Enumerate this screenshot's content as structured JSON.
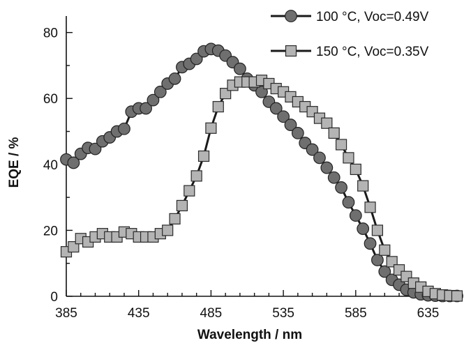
{
  "chart_data": {
    "type": "line",
    "title": "",
    "xlabel": "Wavelength / nm",
    "ylabel": "EQE / %",
    "xlim": [
      385,
      655
    ],
    "ylim": [
      0,
      85
    ],
    "xticks": [
      385,
      435,
      485,
      535,
      585,
      635
    ],
    "yticks": [
      0,
      20,
      40,
      60,
      80
    ],
    "grid": false,
    "legend_position": "top-right",
    "series": [
      {
        "name": "100 °C, Voc=0.49V",
        "marker": "circle",
        "color": "#6f6f6f",
        "x": [
          385,
          390,
          395,
          400,
          405,
          410,
          415,
          420,
          425,
          430,
          435,
          440,
          445,
          450,
          455,
          460,
          465,
          470,
          475,
          480,
          485,
          490,
          495,
          500,
          505,
          510,
          515,
          520,
          525,
          530,
          535,
          540,
          545,
          550,
          555,
          560,
          565,
          570,
          575,
          580,
          585,
          590,
          595,
          600,
          605,
          610,
          615,
          620,
          625,
          630,
          635,
          640,
          645,
          650,
          655
        ],
        "values": [
          41.5,
          40.5,
          43.2,
          45.0,
          44.7,
          47.0,
          48.2,
          50.0,
          50.8,
          56.0,
          57.0,
          57.0,
          59.5,
          62.0,
          64.5,
          66.0,
          69.5,
          70.5,
          72.0,
          74.3,
          75.0,
          74.5,
          73.0,
          71.0,
          69.0,
          66.0,
          64.0,
          62.0,
          59.0,
          57.0,
          54.5,
          52.0,
          49.5,
          46.5,
          44.5,
          42.0,
          39.0,
          36.0,
          33.0,
          28.5,
          24.5,
          20.5,
          16.0,
          11.0,
          7.5,
          5.0,
          3.5,
          2.0,
          1.2,
          0.6,
          0.3,
          0.2,
          0.1,
          0.1,
          0.1
        ]
      },
      {
        "name": "150 °C, Voc=0.35V",
        "marker": "square",
        "color": "#b4b4b4",
        "x": [
          385,
          390,
          395,
          400,
          405,
          410,
          415,
          420,
          425,
          430,
          435,
          440,
          445,
          450,
          455,
          460,
          465,
          470,
          475,
          480,
          485,
          490,
          495,
          500,
          505,
          510,
          515,
          520,
          525,
          530,
          535,
          540,
          545,
          550,
          555,
          560,
          565,
          570,
          575,
          580,
          585,
          590,
          595,
          600,
          605,
          610,
          615,
          620,
          625,
          630,
          635,
          640,
          645,
          650,
          655
        ],
        "values": [
          13.5,
          15.0,
          17.5,
          16.5,
          18.0,
          19.0,
          18.0,
          18.0,
          19.5,
          19.0,
          18.0,
          18.0,
          18.0,
          19.0,
          20.0,
          23.5,
          27.5,
          32.0,
          36.5,
          42.5,
          51.0,
          57.5,
          61.5,
          64.0,
          65.0,
          65.0,
          65.0,
          65.5,
          64.5,
          63.0,
          62.0,
          60.5,
          59.0,
          57.5,
          56.0,
          54.0,
          52.5,
          49.5,
          46.0,
          42.0,
          38.5,
          33.5,
          27.0,
          20.0,
          14.0,
          10.5,
          8.0,
          6.0,
          4.0,
          2.8,
          1.5,
          0.8,
          0.4,
          0.2,
          0.1
        ]
      }
    ]
  }
}
